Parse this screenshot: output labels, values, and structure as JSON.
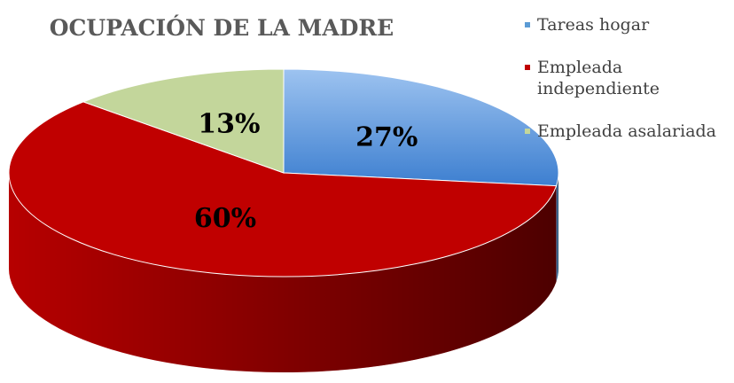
{
  "chart_data": {
    "type": "pie3d",
    "title": "OCUPACIÓN DE LA MADRE",
    "categories": [
      "Tareas hogar",
      "Empleada independiente",
      "Empleada asalariada"
    ],
    "values": [
      27,
      60,
      13
    ],
    "value_labels": [
      "27%",
      "60%",
      "13%"
    ],
    "colors": [
      "#5b9bd5",
      "#c00000",
      "#c3d69b"
    ],
    "legend": "right"
  }
}
